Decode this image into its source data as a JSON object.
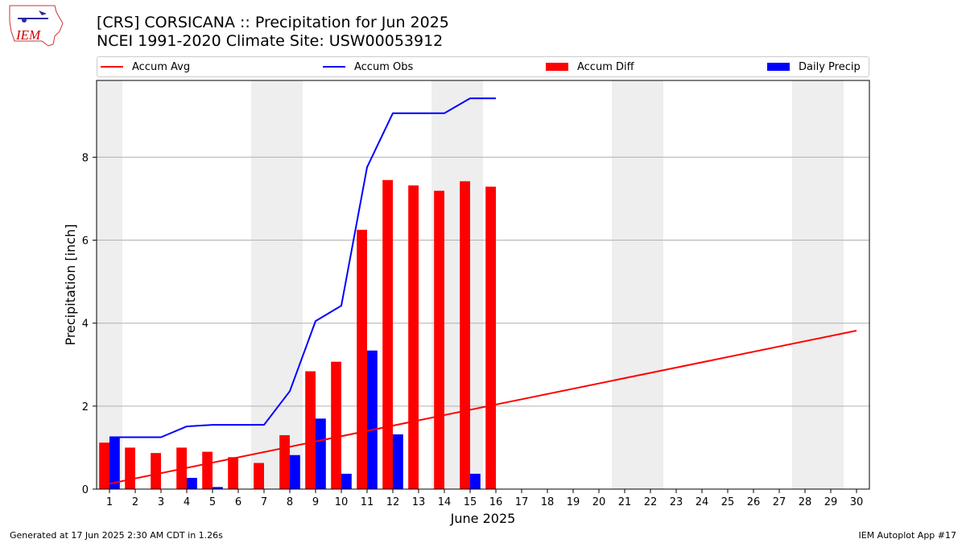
{
  "header": {
    "title": "[CRS] CORSICANA :: Precipitation for Jun 2025",
    "subtitle": "NCEI 1991-2020 Climate Site: USW00053912"
  },
  "logo": {
    "text": "IEM",
    "color": "#cc0000",
    "icon": "iem-iowa-logo"
  },
  "footer": {
    "generated": "Generated at 17 Jun 2025 2:30 AM CDT in 1.26s",
    "app": "IEM Autoplot App #17"
  },
  "chart_data": {
    "type": "bar",
    "xlabel": "June 2025",
    "ylabel": "Precipitation [inch]",
    "x": [
      1,
      2,
      3,
      4,
      5,
      6,
      7,
      8,
      9,
      10,
      11,
      12,
      13,
      14,
      15,
      16,
      17,
      18,
      19,
      20,
      21,
      22,
      23,
      24,
      25,
      26,
      27,
      28,
      29,
      30
    ],
    "xlim": [
      0.5,
      30.5
    ],
    "ylim": [
      0,
      9.85
    ],
    "yticks": [
      0,
      2,
      4,
      6,
      8
    ],
    "grid": "horizontal",
    "legend_placement": "top",
    "weekend_days": [
      1,
      7,
      8,
      14,
      15,
      21,
      22,
      28,
      29
    ],
    "series": [
      {
        "name": "Accum Avg",
        "kind": "line",
        "color": "#ff0000",
        "x": [
          1,
          30
        ],
        "values": [
          0.13,
          3.82
        ]
      },
      {
        "name": "Accum Obs",
        "kind": "line",
        "color": "#0000ff",
        "x": [
          1,
          2,
          3,
          4,
          5,
          6,
          7,
          8,
          9,
          10,
          11,
          12,
          13,
          14,
          15,
          16
        ],
        "values": [
          1.25,
          1.25,
          1.25,
          1.51,
          1.55,
          1.55,
          1.55,
          2.36,
          4.05,
          4.42,
          7.76,
          9.06,
          9.06,
          9.06,
          9.42,
          9.42
        ]
      },
      {
        "name": "Accum Diff",
        "kind": "bar",
        "color": "#ff0000",
        "x": [
          1,
          2,
          3,
          4,
          5,
          6,
          7,
          8,
          9,
          10,
          11,
          12,
          13,
          14,
          15,
          16
        ],
        "values": [
          1.12,
          1.0,
          0.87,
          1.0,
          0.9,
          0.77,
          0.63,
          1.3,
          2.84,
          3.07,
          6.25,
          7.45,
          7.32,
          7.19,
          7.42,
          7.29
        ]
      },
      {
        "name": "Daily Precip",
        "kind": "bar",
        "color": "#0000ff",
        "x": [
          1,
          2,
          3,
          4,
          5,
          6,
          7,
          8,
          9,
          10,
          11,
          12,
          13,
          14,
          15,
          16
        ],
        "values": [
          1.25,
          0,
          0.01,
          0.27,
          0.05,
          0,
          0,
          0.82,
          1.7,
          0.37,
          3.34,
          1.32,
          0,
          0,
          0.37,
          0
        ]
      }
    ]
  }
}
